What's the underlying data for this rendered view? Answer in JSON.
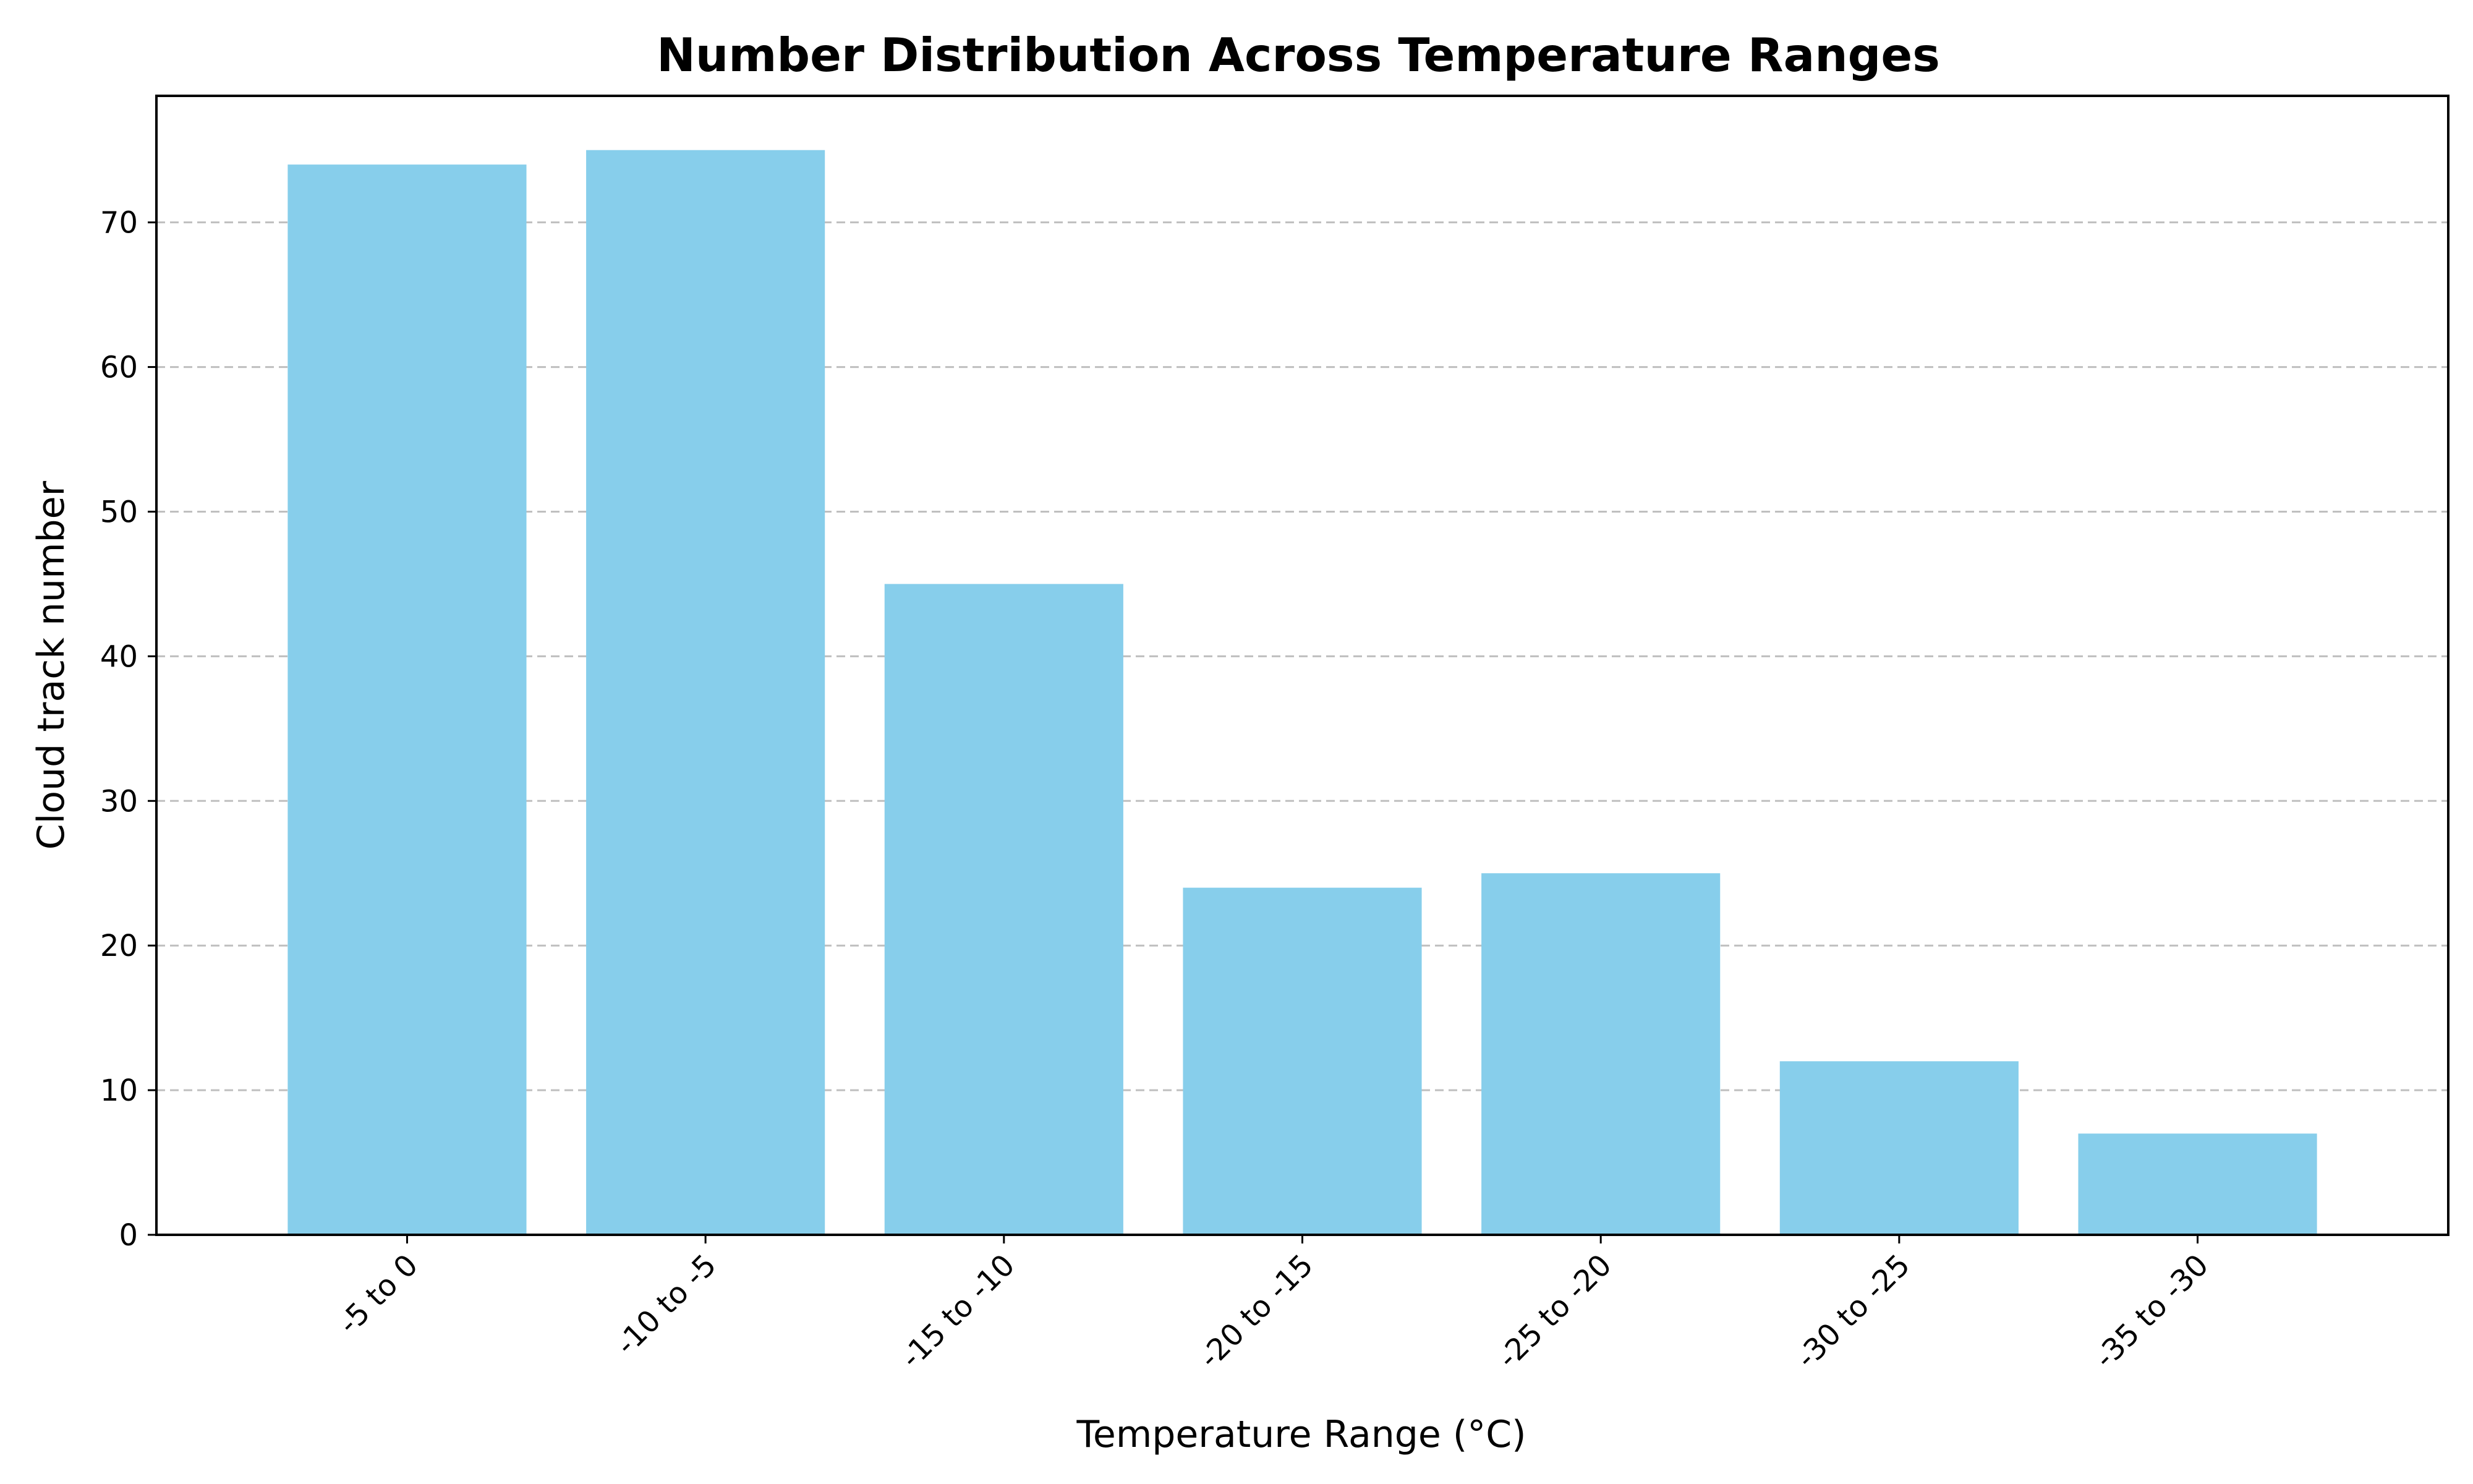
{
  "chart_data": {
    "type": "bar",
    "title": "Number Distribution Across Temperature Ranges",
    "xlabel": "Temperature Range (°C)",
    "ylabel": "Cloud track number",
    "categories": [
      "-5 to 0",
      "-10 to -5",
      "-15 to -10",
      "-20 to -15",
      "-25 to -20",
      "-30 to -25",
      "-35 to -30"
    ],
    "values": [
      74,
      75,
      45,
      24,
      25,
      12,
      7
    ],
    "ylim": [
      0,
      78.75
    ],
    "yticks": [
      0,
      10,
      20,
      30,
      40,
      50,
      60,
      70
    ],
    "grid": "y-dashed",
    "bar_color": "#87CEEB",
    "grid_color": "#bfbfbf",
    "xtick_rotation": "45"
  }
}
